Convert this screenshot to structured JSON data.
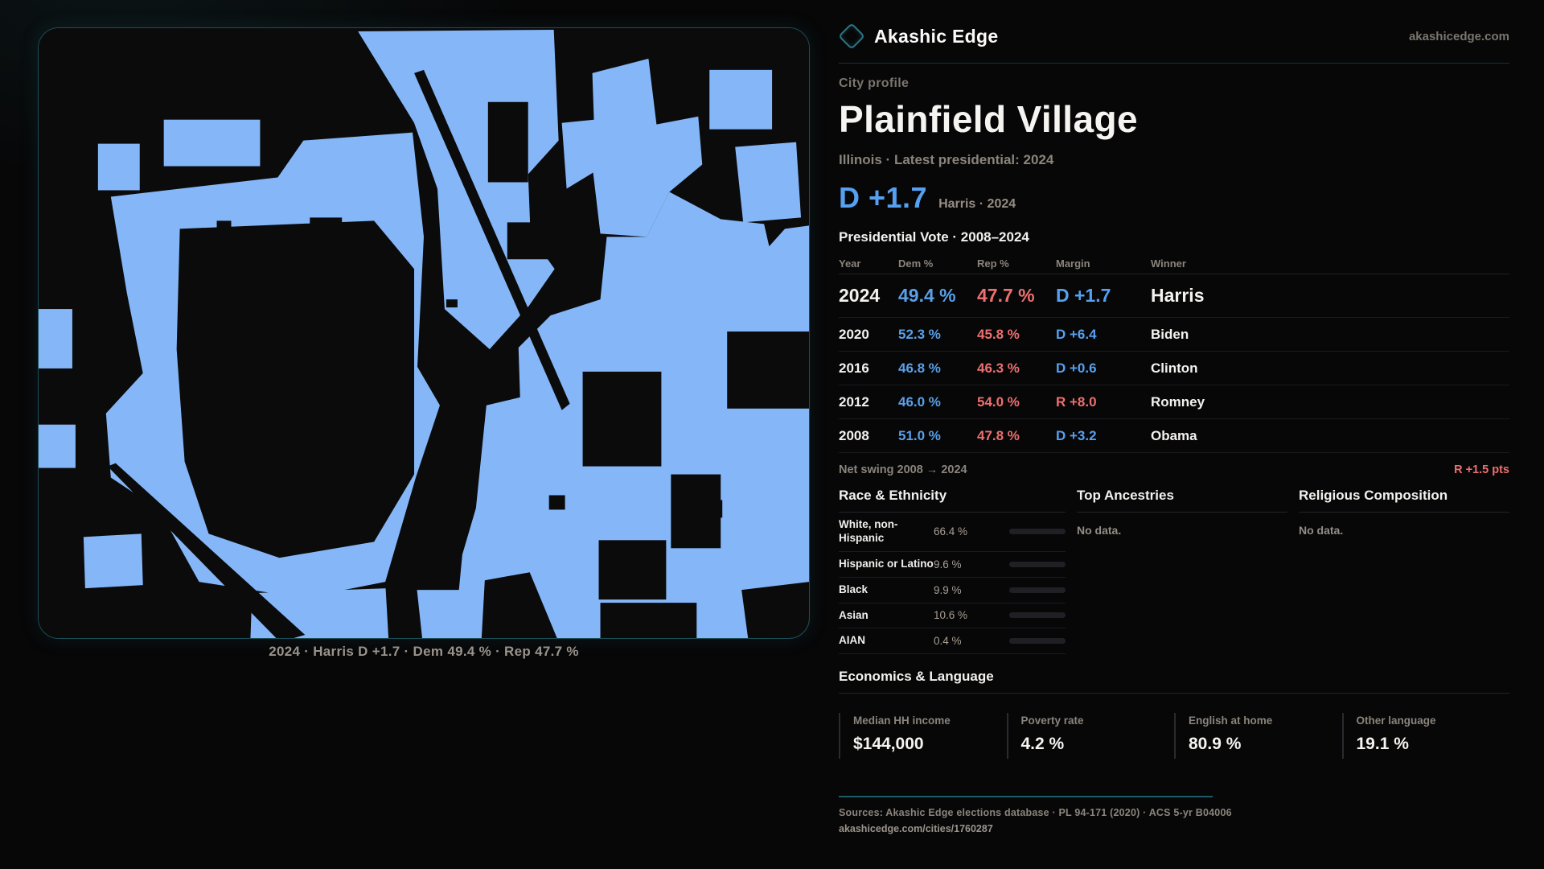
{
  "site": {
    "brand": "Akashic Edge",
    "domain": "akashicedge.com"
  },
  "map": {
    "caption": "2024 · Harris D +1.7 · Dem 49.4 % · Rep 47.7 %",
    "colors": {
      "fill": "#85b7f8",
      "background": "#0b0b0c",
      "border": "#1c4d55"
    }
  },
  "profile": {
    "kicker": "City profile",
    "title": "Plainfield Village",
    "subtitle": "Illinois · Latest presidential: 2024",
    "headline_margin": "D +1.7",
    "headline_detail": "Harris · 2024",
    "margin_color": "#55a0f0"
  },
  "elections": {
    "heading": "Presidential Vote · 2008–2024",
    "columns": {
      "year": "Year",
      "dem": "Dem %",
      "rep": "Rep %",
      "margin": "Margin",
      "winner": "Winner"
    },
    "rows": [
      {
        "year": "2024",
        "dem": "49.4 %",
        "rep": "47.7 %",
        "margin": "D +1.7",
        "winner": "Harris"
      },
      {
        "year": "2020",
        "dem": "52.3 %",
        "rep": "45.8 %",
        "margin": "D +6.4",
        "winner": "Biden"
      },
      {
        "year": "2016",
        "dem": "46.8 %",
        "rep": "46.3 %",
        "margin": "D +0.6",
        "winner": "Clinton"
      },
      {
        "year": "2012",
        "dem": "46.0 %",
        "rep": "54.0 %",
        "margin": "R +8.0",
        "winner": "Romney"
      },
      {
        "year": "2008",
        "dem": "51.0 %",
        "rep": "47.8 %",
        "margin": "D +3.2",
        "winner": "Obama"
      }
    ],
    "net_swing_label": "Net swing 2008 → 2024",
    "net_swing_value": "R +1.5 pts"
  },
  "chart_data": {
    "type": "bar",
    "title": "Race & Ethnicity",
    "categories": [
      "White, non-Hispanic",
      "Hispanic or Latino",
      "Black",
      "Asian",
      "AIAN"
    ],
    "values": [
      66.4,
      9.6,
      9.9,
      10.6,
      0.4
    ],
    "unit": "%",
    "xlim": [
      0,
      100
    ],
    "bar_colors": [
      "#93a9c4",
      "#e0923f",
      "#9d7bef",
      "#2abf96",
      "#e2622b"
    ]
  },
  "demographics": {
    "race": {
      "heading": "Race & Ethnicity",
      "rows": [
        {
          "label": "White, non-Hispanic",
          "value": "66.4 %",
          "pct": 66.4,
          "color": "#93a9c4"
        },
        {
          "label": "Hispanic or Latino",
          "value": "9.6 %",
          "pct": 9.6,
          "color": "#e0923f"
        },
        {
          "label": "Black",
          "value": "9.9 %",
          "pct": 9.9,
          "color": "#9d7bef"
        },
        {
          "label": "Asian",
          "value": "10.6 %",
          "pct": 10.6,
          "color": "#2abf96"
        },
        {
          "label": "AIAN",
          "value": "0.4 %",
          "pct": 0.4,
          "color": "#e2622b"
        }
      ]
    },
    "ancestries": {
      "heading": "Top Ancestries",
      "empty": "No data."
    },
    "religion": {
      "heading": "Religious Composition",
      "empty": "No data."
    }
  },
  "economics": {
    "heading": "Economics & Language",
    "stats": [
      {
        "label": "Median HH income",
        "value": "$144,000"
      },
      {
        "label": "Poverty rate",
        "value": "4.2 %"
      },
      {
        "label": "English at home",
        "value": "80.9 %"
      },
      {
        "label": "Other language",
        "value": "19.1 %"
      }
    ]
  },
  "footer": {
    "sources": "Sources: Akashic Edge elections database · PL 94-171 (2020) · ACS 5-yr B04006",
    "permalink": "akashicedge.com/cities/1760287"
  }
}
